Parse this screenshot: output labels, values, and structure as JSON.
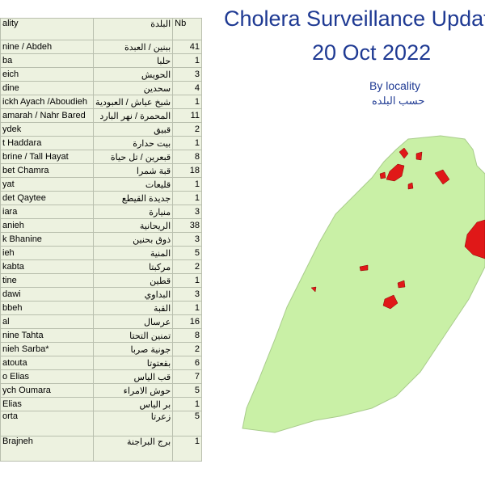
{
  "table": {
    "header": [
      "ality",
      "البلدة",
      "Nb"
    ],
    "rows": [
      [
        "nine / Abdeh",
        "ببنين / العبدة",
        "41"
      ],
      [
        "ba",
        "حلبا",
        "1"
      ],
      [
        "eich",
        "الحويش",
        "3"
      ],
      [
        "dine",
        "سحدين",
        "4"
      ],
      [
        "ickh Ayach /Aboudieh",
        "شيخ عياش / العبودية",
        "1"
      ],
      [
        "amarah / Nahr Bared",
        "المحمرة / نهر البارد",
        "11"
      ],
      [
        "ydek",
        "قبيق",
        "2"
      ],
      [
        "t Haddara",
        "بيت حدارة",
        "1"
      ],
      [
        "brine / Tall Hayat",
        "قبعرين / تل حياة",
        "8"
      ],
      [
        "bet Chamra",
        "قبة شمرا",
        "18"
      ],
      [
        "yat",
        "قليعات",
        "1"
      ],
      [
        "det Qaytee",
        "جديدة القيطع",
        "1"
      ],
      [
        "iara",
        "منيارة",
        "3"
      ],
      [
        "anieh",
        "الريحانية",
        "38"
      ],
      [
        "k Bhanine",
        "ذوق بحنين",
        "3"
      ],
      [
        "ieh",
        "المنية",
        "5"
      ],
      [
        "kabta",
        "مركبتا",
        "2"
      ],
      [
        "tine",
        "قطين",
        "1"
      ],
      [
        "dawi",
        "البداوي",
        "3"
      ],
      [
        "bbeh",
        "القبة",
        "1"
      ],
      [
        "al",
        "عرسال",
        "16"
      ],
      [
        "nine Tahta",
        "تمنين التحتا",
        "8"
      ],
      [
        "nieh Sarba*",
        "جونية صربا",
        "2"
      ],
      [
        "atouta",
        "بقعتوتا",
        "6"
      ],
      [
        "o Elias",
        "قب الياس",
        "7"
      ],
      [
        "ych Oumara",
        "حوش الامراء",
        "5"
      ],
      [
        "Elias",
        "بر الياس",
        "1"
      ],
      [
        "orta",
        "زعرتا",
        "5"
      ],
      [
        "Brajneh",
        "برج البراجنة",
        "1"
      ]
    ]
  },
  "title": {
    "line1": "Cholera Surveillance Update",
    "line2": "20 Oct 2022"
  },
  "subtitle": {
    "en": "By locality",
    "ar": "حسب البلده"
  }
}
